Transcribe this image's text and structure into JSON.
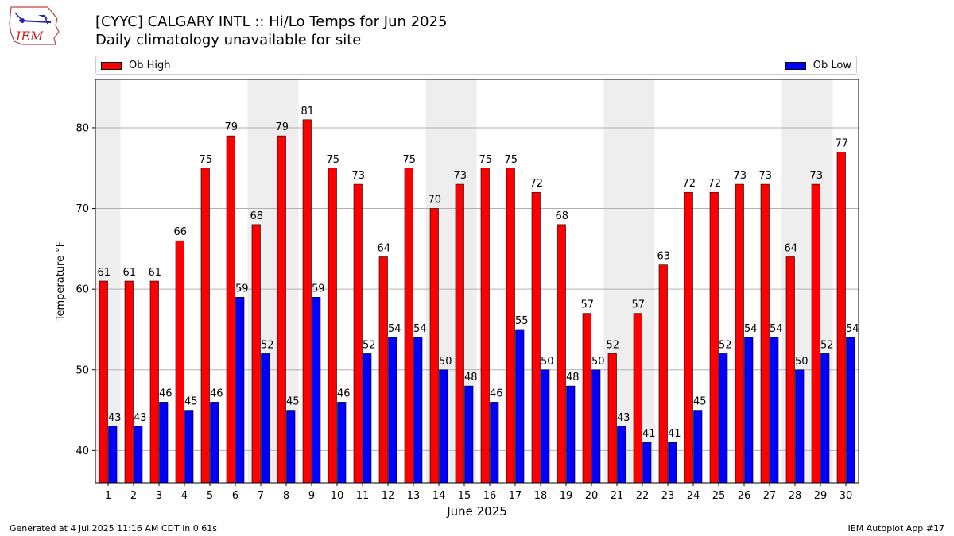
{
  "header": {
    "logo_text": "IEM",
    "title_line1": "[CYYC] CALGARY INTL :: Hi/Lo Temps for Jun 2025",
    "title_line2": "Daily climatology unavailable for site"
  },
  "footer": {
    "generated": "Generated at 4 Jul 2025 11:16 AM CDT in 0.61s",
    "app": "IEM Autoplot App #17"
  },
  "colors": {
    "high": "#ff0000",
    "low": "#0000ff",
    "weekend_band": "#eeeeee",
    "grid": "#b0b0b0"
  },
  "chart_data": {
    "type": "bar",
    "xlabel": "June 2025",
    "ylabel": "Temperature °F",
    "ylim": [
      36,
      86
    ],
    "yticks": [
      40,
      50,
      60,
      70,
      80
    ],
    "grid": "horizontal",
    "legend_placement": "top",
    "categories": [
      "1",
      "2",
      "3",
      "4",
      "5",
      "6",
      "7",
      "8",
      "9",
      "10",
      "11",
      "12",
      "13",
      "14",
      "15",
      "16",
      "17",
      "18",
      "19",
      "20",
      "21",
      "22",
      "23",
      "24",
      "25",
      "26",
      "27",
      "28",
      "29",
      "30"
    ],
    "shaded_days": [
      1,
      7,
      8,
      14,
      15,
      21,
      22,
      28,
      29
    ],
    "series": [
      {
        "name": "Ob High",
        "values": [
          61,
          61,
          61,
          66,
          75,
          79,
          68,
          79,
          81,
          75,
          73,
          64,
          75,
          70,
          73,
          75,
          75,
          72,
          68,
          57,
          52,
          57,
          63,
          72,
          72,
          73,
          73,
          64,
          73,
          77
        ]
      },
      {
        "name": "Ob Low",
        "values": [
          43,
          43,
          46,
          45,
          46,
          59,
          52,
          45,
          59,
          46,
          52,
          54,
          54,
          50,
          48,
          46,
          55,
          50,
          48,
          50,
          43,
          41,
          41,
          45,
          52,
          54,
          54,
          50,
          52,
          54
        ]
      }
    ]
  }
}
